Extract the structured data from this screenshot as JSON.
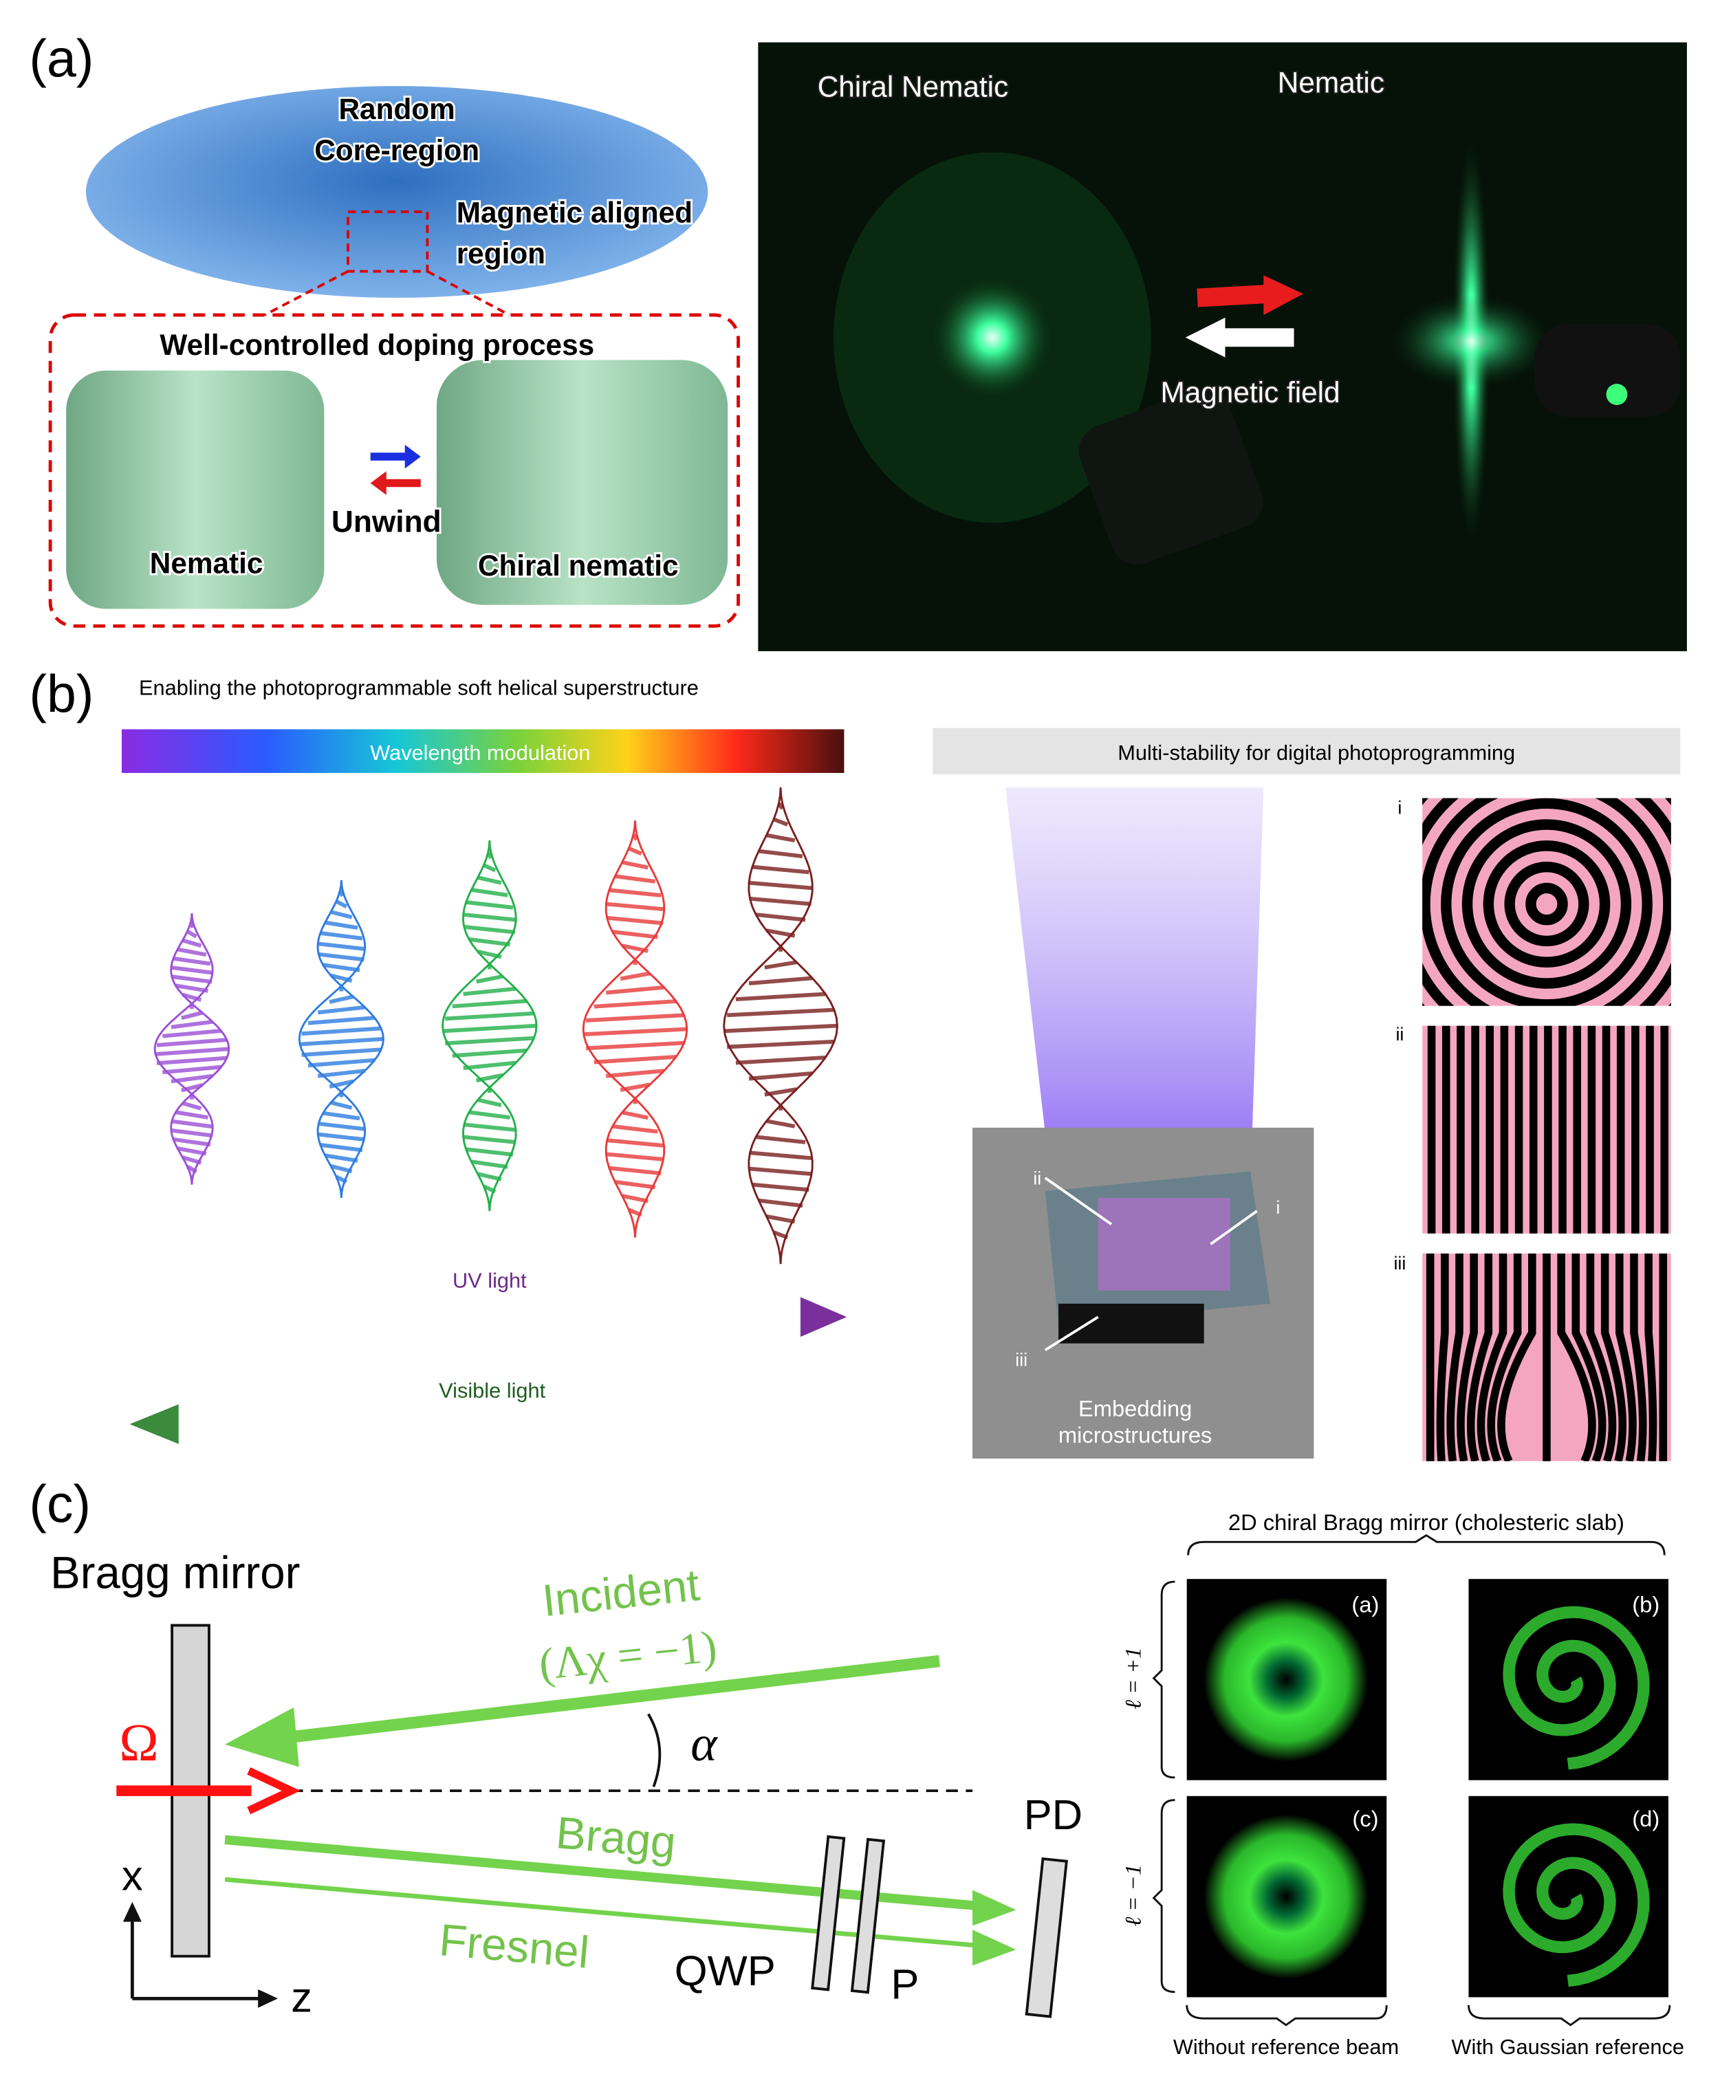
{
  "panel_a": {
    "label": "(a)",
    "schematic": {
      "core": [
        "Random",
        "Core-region"
      ],
      "aligned": [
        "Magnetic aligned",
        "region"
      ],
      "process": "Well-controlled doping process",
      "unwind": "Unwind",
      "nematic": "Nematic",
      "chiral_nematic": "Chiral nematic"
    },
    "photo": {
      "left": "Chiral Nematic",
      "right": "Nematic",
      "field": "Magnetic field"
    }
  },
  "panel_b": {
    "label": "(b)",
    "title": "Enabling the photoprogrammable soft helical superstructure",
    "wavelength": "Wavelength modulation",
    "uv": "UV light",
    "visible": "Visible light",
    "multi": "Multi-stability for digital photoprogramming",
    "embedding": [
      "Embedding",
      "microstructures"
    ],
    "markers": [
      "ii",
      "i",
      "iii"
    ],
    "pattern_labels": [
      "i",
      "ii",
      "iii"
    ]
  },
  "panel_c": {
    "label": "(c)",
    "bragg_mirror": "Bragg mirror",
    "omega": "Ω",
    "incident": [
      "Incident",
      "(Λχ = −1)"
    ],
    "alpha": "α",
    "bragg": "Bragg",
    "fresnel": "Fresnel",
    "qwp": "QWP",
    "p": "P",
    "pd": "PD",
    "x": "x",
    "z": "z",
    "header": "2D chiral Bragg mirror (cholesteric slab)",
    "row_labels": [
      "ℓ = +1",
      "ℓ = −1"
    ],
    "subpanels": [
      "(a)",
      "(b)",
      "(c)",
      "(d)"
    ],
    "col_labels": [
      "Without reference beam",
      "With Gaussian reference"
    ]
  }
}
